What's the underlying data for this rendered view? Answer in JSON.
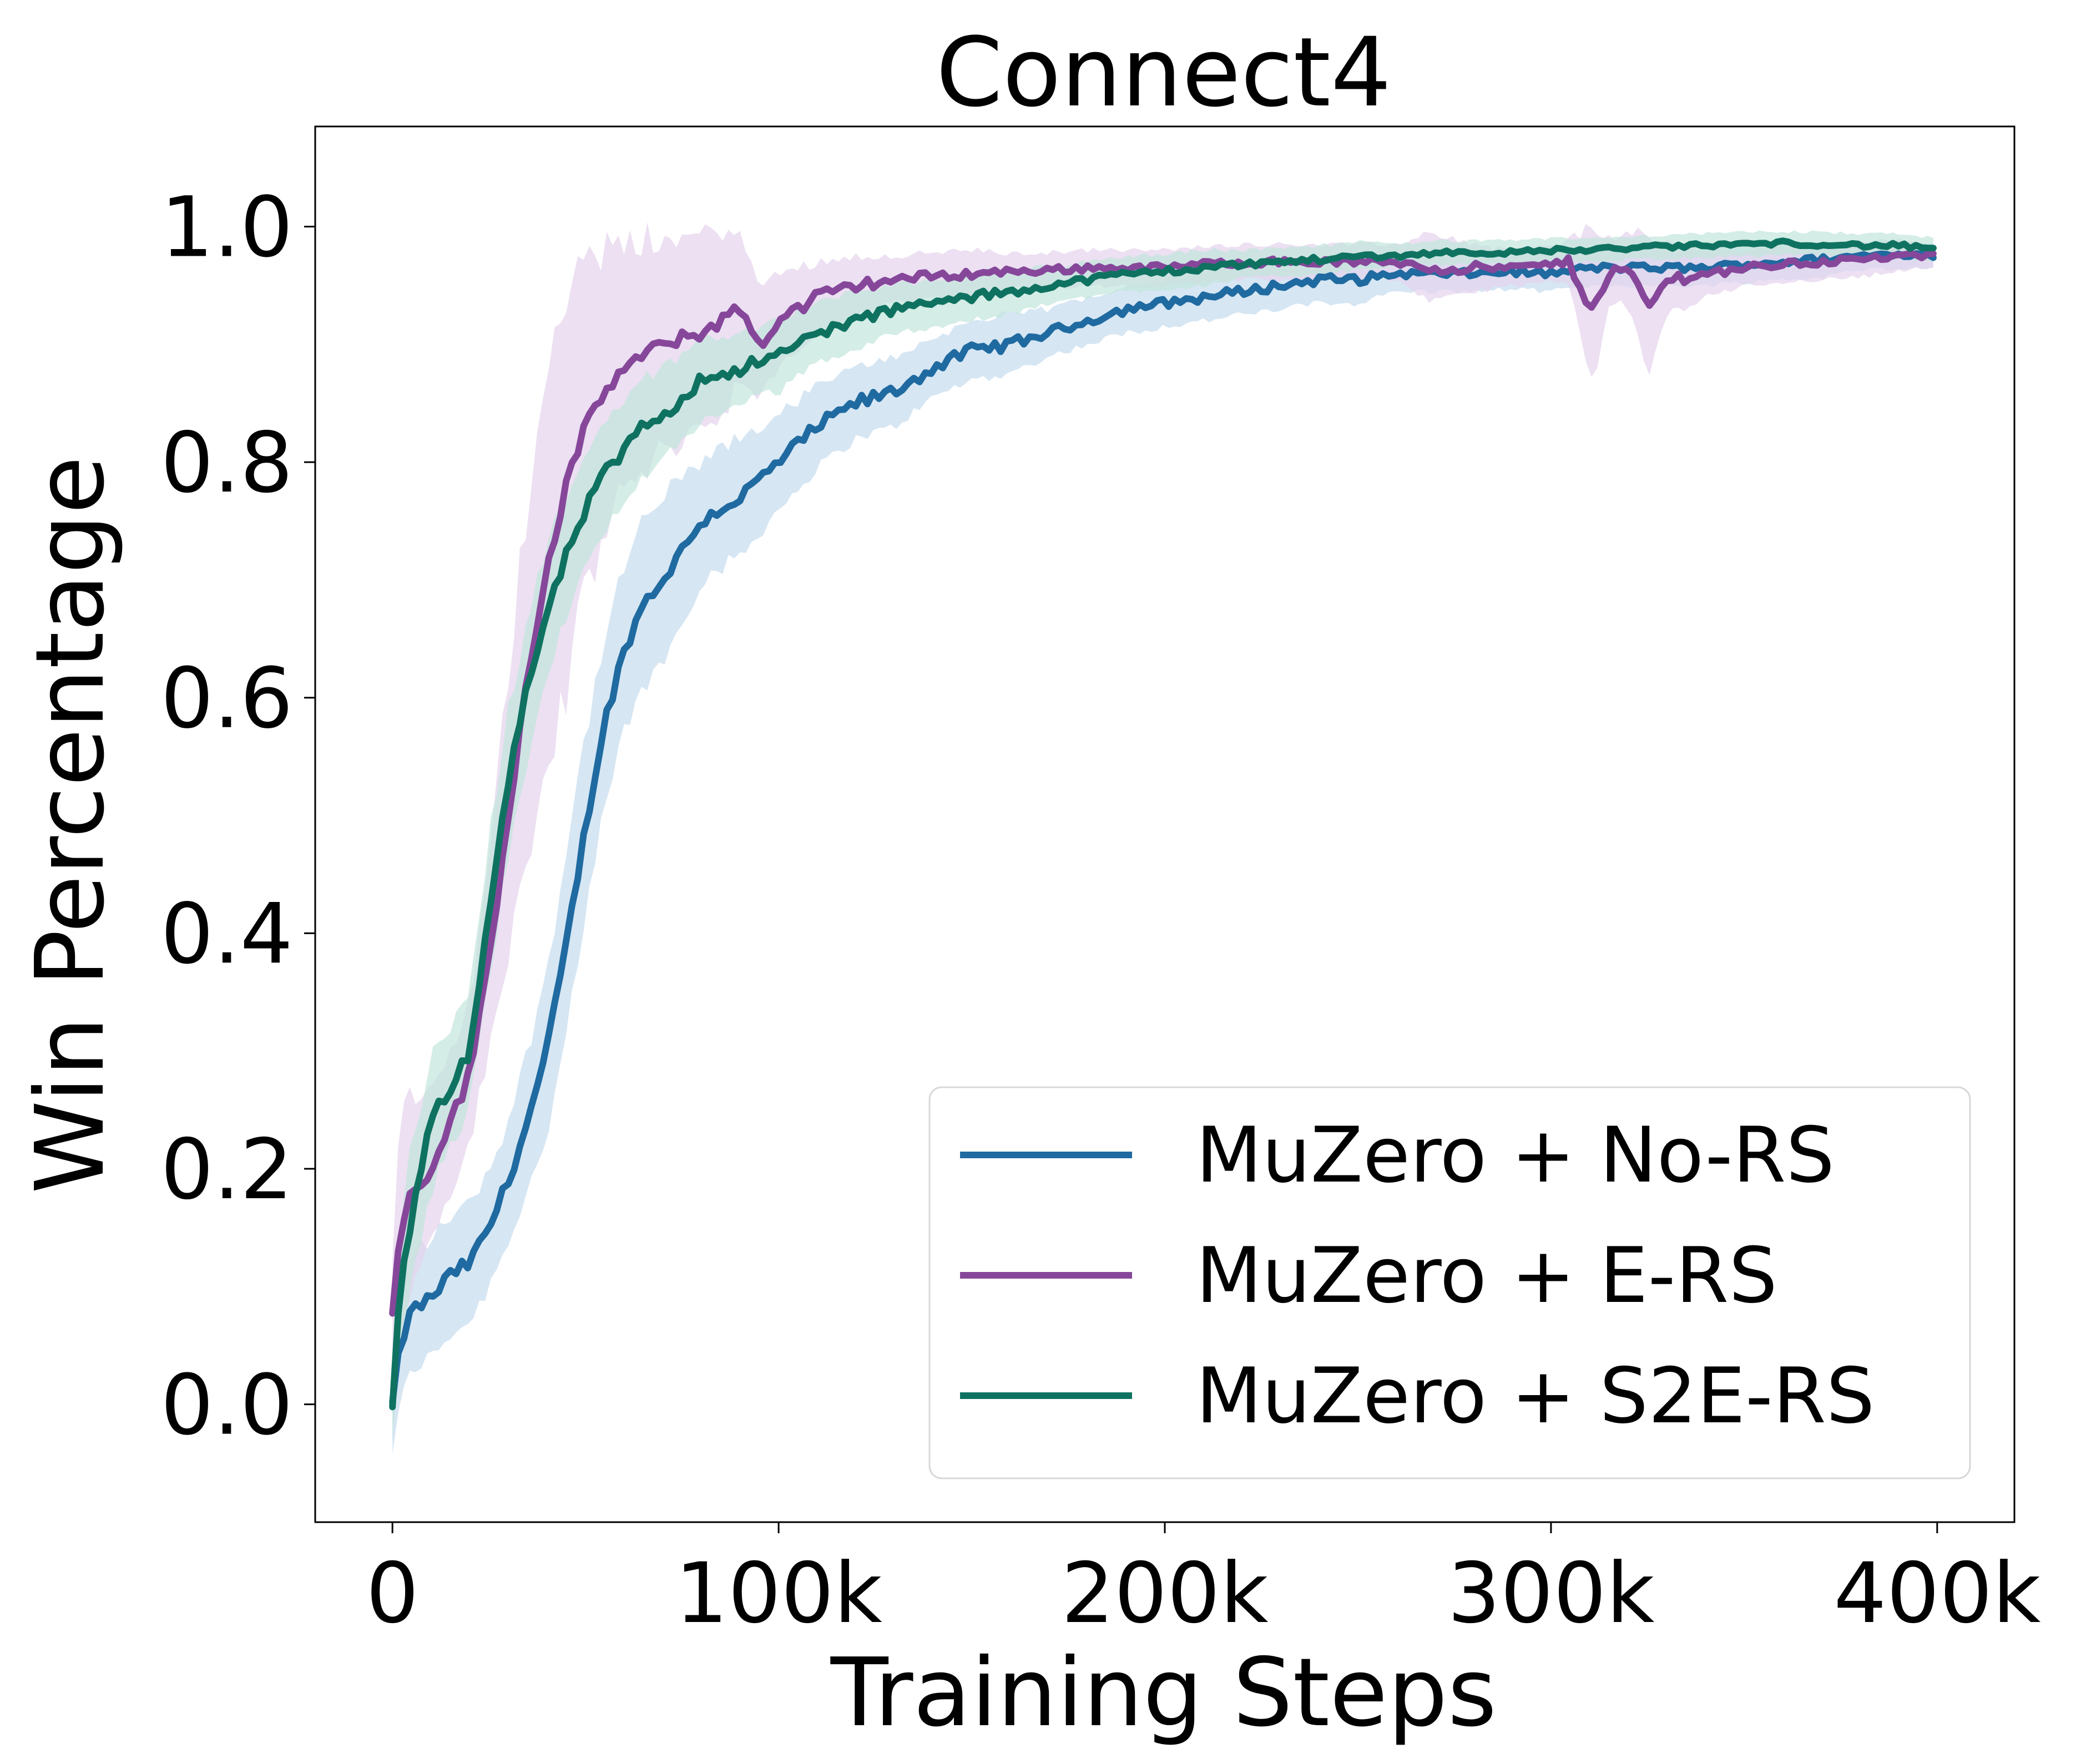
{
  "chart_data": {
    "type": "line",
    "title": "Connect4",
    "xlabel": "Training Steps",
    "ylabel": "Win Percentage",
    "xlim": [
      -20000,
      420000
    ],
    "ylim": [
      -0.1,
      1.085
    ],
    "xticks": [
      0,
      100000,
      200000,
      300000,
      400000
    ],
    "xtick_labels": [
      "0",
      "100k",
      "200k",
      "300k",
      "400k"
    ],
    "yticks": [
      0.0,
      0.2,
      0.4,
      0.6,
      0.8,
      1.0
    ],
    "ytick_labels": [
      "0.0",
      "0.2",
      "0.4",
      "0.6",
      "0.8",
      "1.0"
    ],
    "grid": false,
    "legend_position": "lower-right",
    "series": [
      {
        "name": "MuZero + No-RS",
        "color": "#1f6aa0",
        "band_color": "#c4dcee",
        "x": [
          0,
          2000,
          5000,
          10000,
          15000,
          20000,
          25000,
          30000,
          35000,
          40000,
          45000,
          50000,
          55000,
          60000,
          65000,
          70000,
          80000,
          90000,
          100000,
          110000,
          120000,
          130000,
          140000,
          150000,
          160000,
          170000,
          180000,
          190000,
          200000,
          210000,
          220000,
          230000,
          240000,
          250000,
          260000,
          270000,
          280000,
          290000,
          300000,
          310000,
          320000,
          330000,
          340000,
          350000,
          360000,
          370000,
          380000,
          390000,
          400000
        ],
        "values": [
          0.0,
          0.05,
          0.08,
          0.09,
          0.11,
          0.12,
          0.15,
          0.19,
          0.24,
          0.3,
          0.39,
          0.49,
          0.58,
          0.64,
          0.68,
          0.7,
          0.75,
          0.77,
          0.8,
          0.83,
          0.85,
          0.86,
          0.88,
          0.895,
          0.9,
          0.91,
          0.92,
          0.93,
          0.935,
          0.94,
          0.945,
          0.95,
          0.955,
          0.955,
          0.96,
          0.96,
          0.96,
          0.962,
          0.96,
          0.965,
          0.965,
          0.965,
          0.965,
          0.968,
          0.97,
          0.972,
          0.975,
          0.977,
          0.975
        ],
        "band": [
          0.04,
          0.05,
          0.05,
          0.05,
          0.05,
          0.05,
          0.05,
          0.05,
          0.06,
          0.07,
          0.08,
          0.08,
          0.07,
          0.07,
          0.07,
          0.07,
          0.05,
          0.05,
          0.04,
          0.035,
          0.03,
          0.03,
          0.025,
          0.025,
          0.025,
          0.02,
          0.02,
          0.02,
          0.02,
          0.02,
          0.02,
          0.02,
          0.02,
          0.02,
          0.015,
          0.015,
          0.015,
          0.015,
          0.015,
          0.015,
          0.015,
          0.015,
          0.015,
          0.015,
          0.015,
          0.015,
          0.012,
          0.012,
          0.01
        ]
      },
      {
        "name": "MuZero + E-RS",
        "color": "#86479a",
        "band_color": "#e4d3ec",
        "x": [
          0,
          2000,
          5000,
          10000,
          15000,
          20000,
          25000,
          30000,
          35000,
          40000,
          45000,
          50000,
          55000,
          60000,
          65000,
          70000,
          80000,
          85000,
          90000,
          95000,
          100000,
          110000,
          120000,
          130000,
          140000,
          150000,
          160000,
          170000,
          180000,
          190000,
          200000,
          210000,
          220000,
          230000,
          240000,
          250000,
          260000,
          270000,
          280000,
          290000,
          300000,
          305000,
          310000,
          315000,
          320000,
          325000,
          330000,
          340000,
          350000,
          360000,
          370000,
          380000,
          390000,
          400000
        ],
        "values": [
          0.08,
          0.15,
          0.18,
          0.2,
          0.24,
          0.28,
          0.38,
          0.5,
          0.62,
          0.71,
          0.78,
          0.83,
          0.86,
          0.88,
          0.89,
          0.9,
          0.91,
          0.92,
          0.93,
          0.9,
          0.92,
          0.94,
          0.95,
          0.955,
          0.958,
          0.96,
          0.962,
          0.963,
          0.965,
          0.965,
          0.965,
          0.968,
          0.97,
          0.97,
          0.97,
          0.97,
          0.97,
          0.965,
          0.965,
          0.965,
          0.968,
          0.97,
          0.93,
          0.96,
          0.965,
          0.93,
          0.955,
          0.96,
          0.965,
          0.968,
          0.97,
          0.972,
          0.975,
          0.975
        ],
        "band": [
          0.05,
          0.1,
          0.08,
          0.06,
          0.06,
          0.06,
          0.08,
          0.12,
          0.15,
          0.18,
          0.17,
          0.14,
          0.12,
          0.1,
          0.1,
          0.09,
          0.08,
          0.08,
          0.06,
          0.05,
          0.04,
          0.03,
          0.025,
          0.02,
          0.02,
          0.02,
          0.015,
          0.015,
          0.015,
          0.015,
          0.015,
          0.015,
          0.015,
          0.015,
          0.015,
          0.015,
          0.015,
          0.03,
          0.02,
          0.015,
          0.015,
          0.02,
          0.07,
          0.03,
          0.03,
          0.06,
          0.03,
          0.02,
          0.015,
          0.015,
          0.015,
          0.015,
          0.012,
          0.01
        ]
      },
      {
        "name": "MuZero + S2E-RS",
        "color": "#0f7261",
        "band_color": "#c2e6dc",
        "x": [
          0,
          2000,
          5000,
          10000,
          15000,
          20000,
          25000,
          30000,
          35000,
          40000,
          45000,
          50000,
          55000,
          60000,
          65000,
          70000,
          80000,
          90000,
          100000,
          110000,
          120000,
          130000,
          140000,
          150000,
          160000,
          170000,
          180000,
          190000,
          200000,
          210000,
          220000,
          230000,
          240000,
          250000,
          260000,
          270000,
          280000,
          290000,
          300000,
          310000,
          320000,
          330000,
          340000,
          350000,
          360000,
          370000,
          380000,
          390000,
          400000
        ],
        "values": [
          0.0,
          0.1,
          0.16,
          0.24,
          0.27,
          0.3,
          0.42,
          0.53,
          0.61,
          0.67,
          0.72,
          0.76,
          0.79,
          0.81,
          0.83,
          0.84,
          0.87,
          0.88,
          0.89,
          0.91,
          0.92,
          0.93,
          0.935,
          0.94,
          0.945,
          0.95,
          0.955,
          0.96,
          0.962,
          0.965,
          0.968,
          0.97,
          0.972,
          0.975,
          0.975,
          0.978,
          0.978,
          0.978,
          0.98,
          0.98,
          0.982,
          0.983,
          0.984,
          0.985,
          0.986,
          0.985,
          0.984,
          0.984,
          0.98
        ],
        "band": [
          0.03,
          0.06,
          0.06,
          0.06,
          0.05,
          0.05,
          0.06,
          0.06,
          0.06,
          0.06,
          0.05,
          0.05,
          0.05,
          0.04,
          0.04,
          0.04,
          0.035,
          0.03,
          0.03,
          0.025,
          0.025,
          0.02,
          0.02,
          0.02,
          0.02,
          0.015,
          0.015,
          0.015,
          0.015,
          0.015,
          0.012,
          0.012,
          0.012,
          0.012,
          0.01,
          0.01,
          0.01,
          0.01,
          0.01,
          0.01,
          0.01,
          0.01,
          0.01,
          0.01,
          0.01,
          0.01,
          0.01,
          0.01,
          0.01
        ]
      }
    ]
  }
}
